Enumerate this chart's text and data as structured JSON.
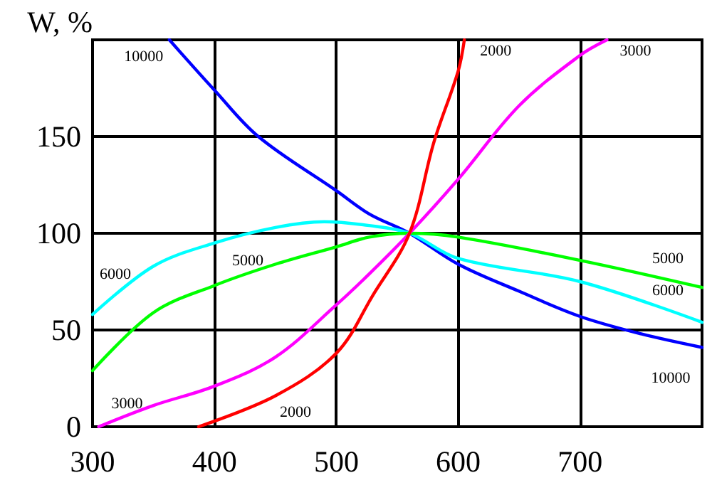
{
  "chart_data": {
    "type": "line",
    "ylabel": "W, %",
    "xlim": [
      300,
      800
    ],
    "ylim": [
      0,
      200
    ],
    "xticks": [
      300,
      400,
      500,
      600,
      700
    ],
    "yticks": [
      0,
      50,
      100,
      150
    ],
    "grid": true,
    "marker": "none",
    "line_style": "solid",
    "series": [
      {
        "name": "10000",
        "color": "#0000ff",
        "x": [
          363,
          400,
          436,
          500,
          527,
          560,
          600,
          650,
          700,
          750,
          800
        ],
        "values": [
          200,
          174,
          150,
          122,
          110,
          100,
          84,
          70,
          57,
          48,
          41
        ]
      },
      {
        "name": "6000",
        "color": "#00ffff",
        "x": [
          300,
          350,
          400,
          450,
          490,
          527,
          560,
          600,
          700,
          800
        ],
        "values": [
          58,
          83,
          95,
          103,
          106,
          104,
          100,
          87,
          75,
          54
        ]
      },
      {
        "name": "5000",
        "color": "#00ff00",
        "x": [
          300,
          350,
          400,
          450,
          500,
          527,
          560,
          600,
          700,
          800
        ],
        "values": [
          29,
          59,
          73,
          84,
          93,
          98,
          100,
          98,
          86,
          72
        ]
      },
      {
        "name": "3000",
        "color": "#ff00ff",
        "x": [
          305,
          350,
          400,
          450,
          500,
          527,
          560,
          600,
          650,
          700,
          722
        ],
        "values": [
          0,
          11,
          21,
          36,
          63,
          79,
          100,
          128,
          166,
          192,
          200
        ]
      },
      {
        "name": "2000",
        "color": "#ff0000",
        "x": [
          387,
          450,
          500,
          530,
          560,
          580,
          600,
          605
        ],
        "values": [
          0,
          16,
          38,
          68,
          100,
          147,
          184,
          200
        ]
      }
    ]
  }
}
